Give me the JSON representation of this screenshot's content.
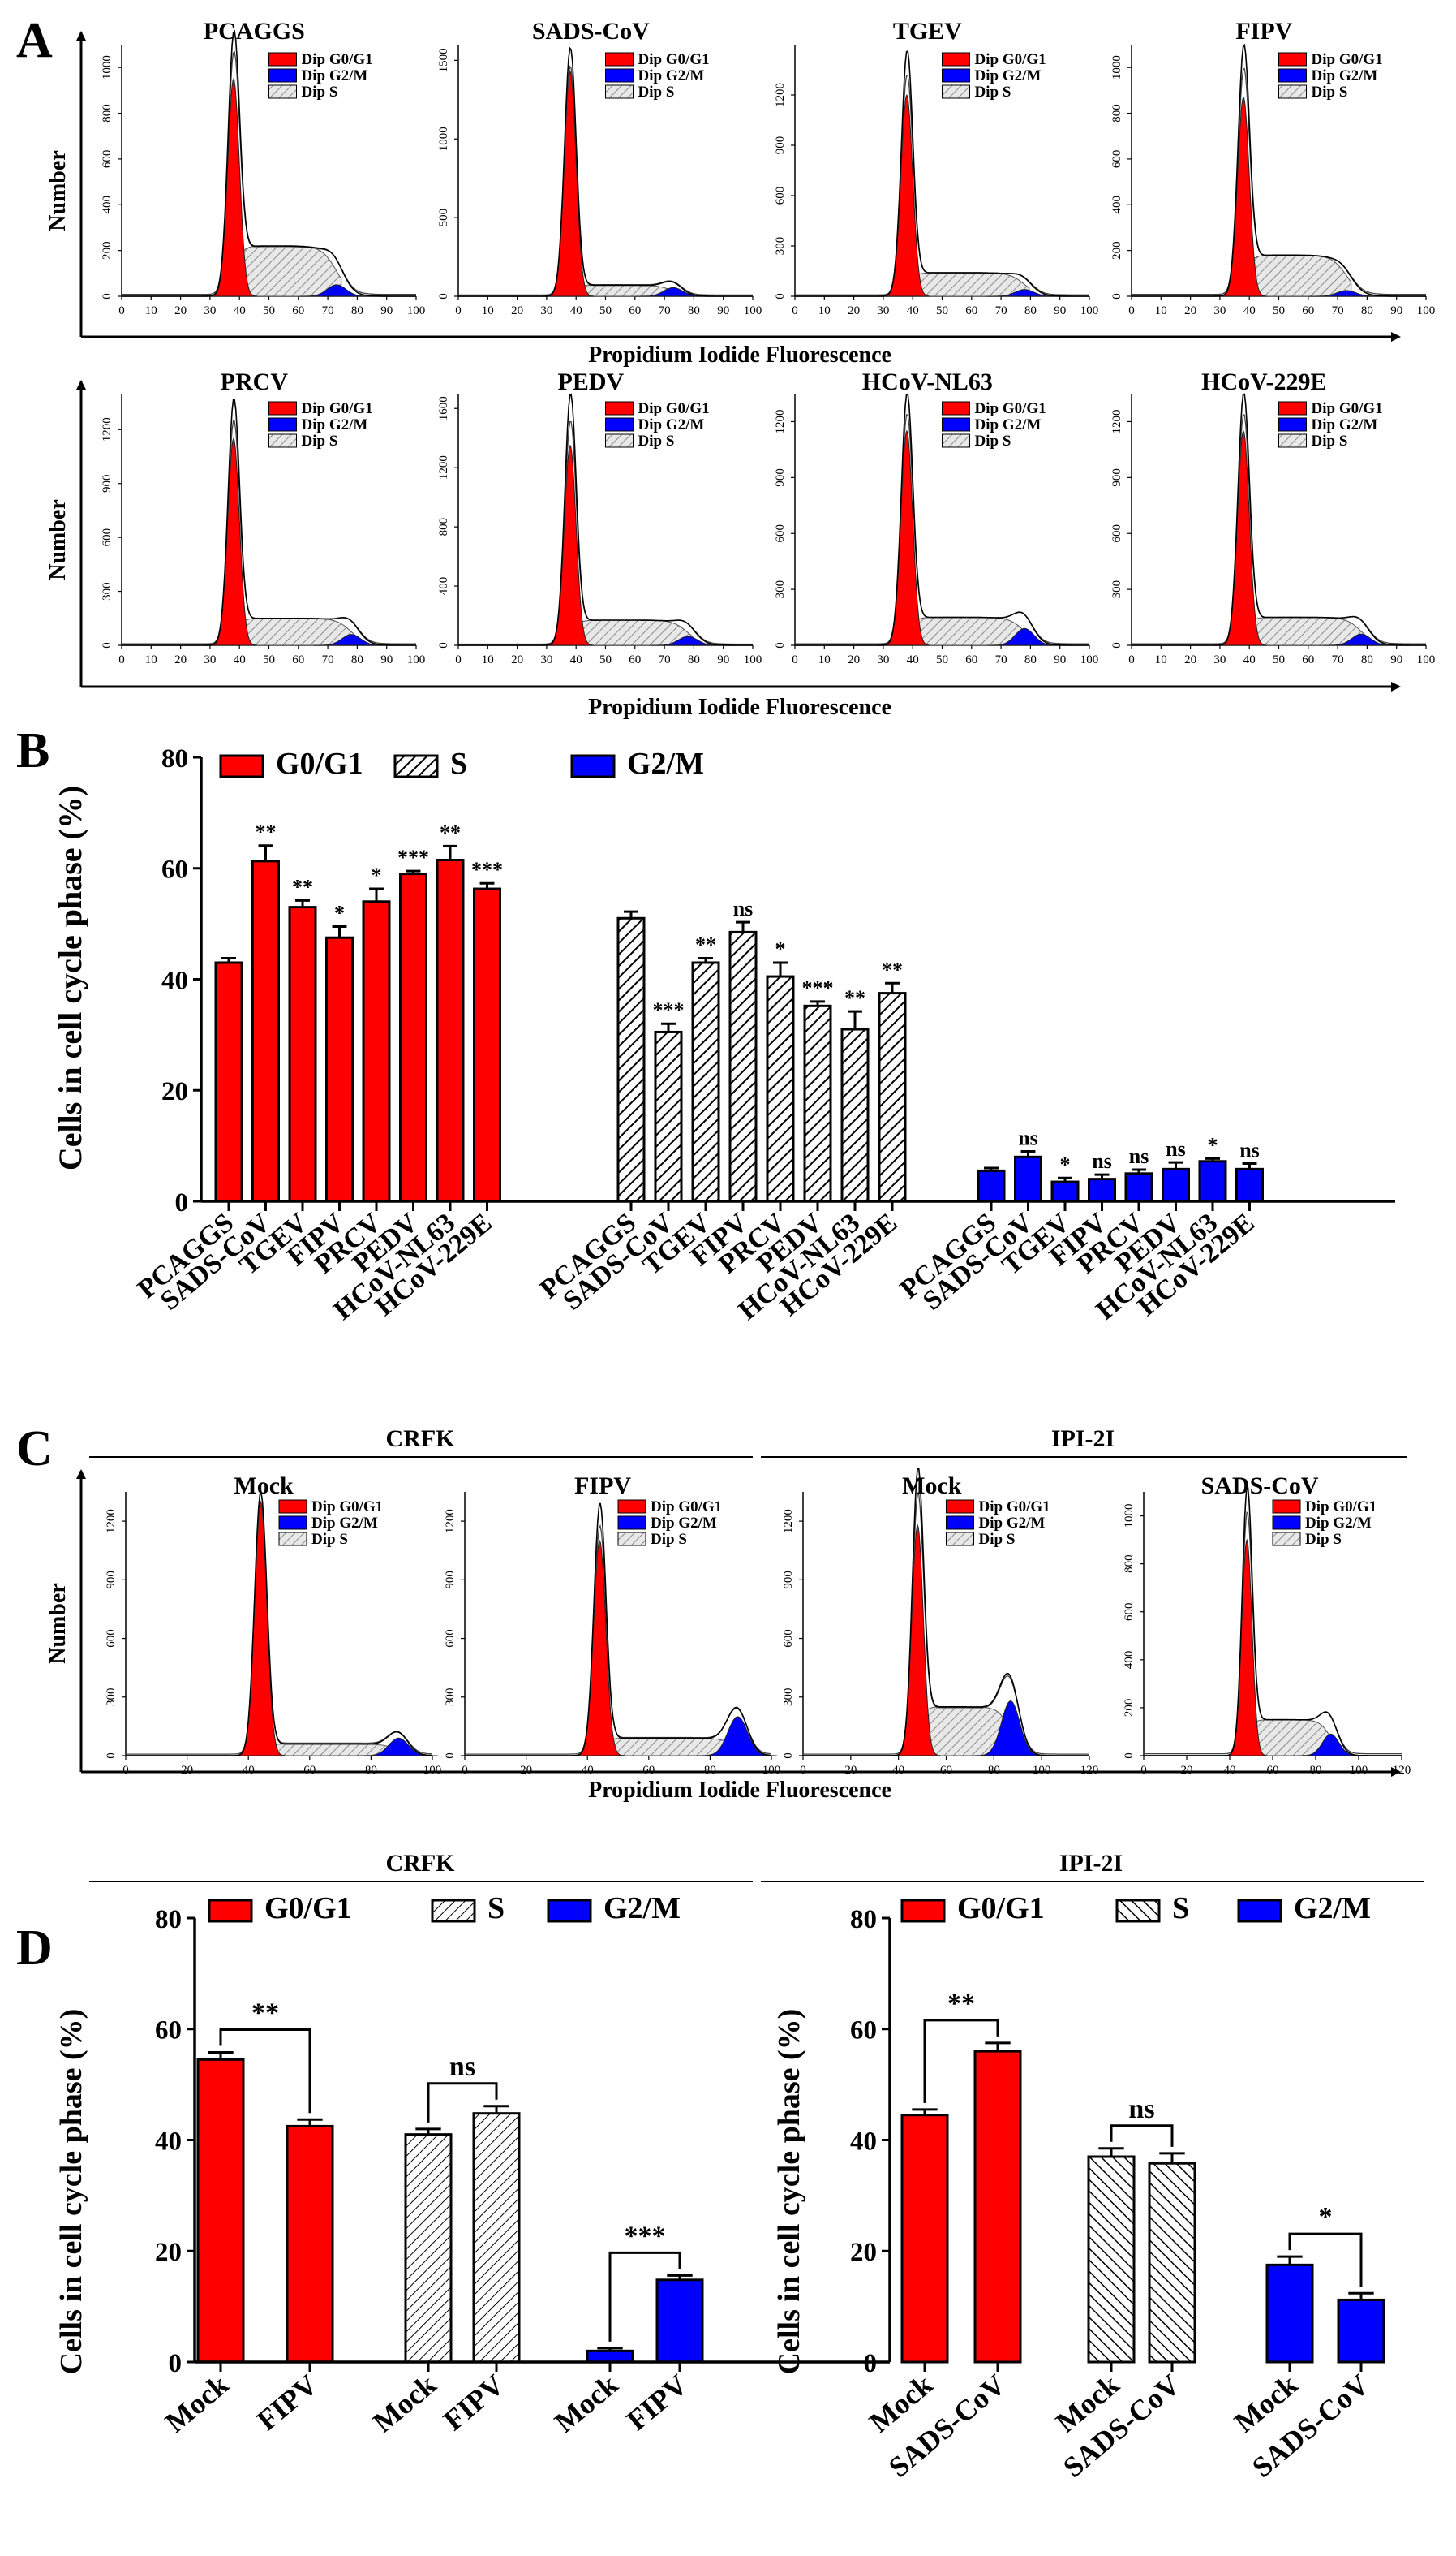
{
  "colors": {
    "g0g1": "#ff0000",
    "s": "#ffffff",
    "g2m": "#0000ff",
    "hist_s": "#bdbdbd",
    "axis": "#000000"
  },
  "panel_labels": {
    "a": "A",
    "b": "B",
    "c": "C",
    "d": "D"
  },
  "legend_hist": {
    "g0g1": "Dip G0/G1",
    "g2m": "Dip G2/M",
    "s": "Dip S"
  },
  "legend_bar": {
    "g0g1": "G0/G1",
    "s": "S",
    "g2m": "G2/M"
  },
  "axis_titles": {
    "number": "Number",
    "pi_fluorescence": "Propidium Iodide Fluorescence",
    "cells_pct": "Cells in cell cycle phase (%)"
  },
  "panel_c_groups": {
    "left": "CRFK",
    "right": "IPI-2I"
  },
  "panel_d_groups": {
    "left": "CRFK",
    "right": "IPI-2I"
  },
  "chart_data": [
    {
      "id": "panelA",
      "type": "histogram",
      "xlabel": "Propidium Iodide Fluorescence",
      "ylabel": "Number",
      "xlim": [
        0,
        100
      ],
      "xticks": [
        0,
        10,
        20,
        30,
        40,
        50,
        60,
        70,
        80,
        90,
        100
      ],
      "plots": [
        {
          "title": "PCAGGS",
          "ylim": [
            0,
            1100
          ],
          "yticks": [
            0,
            200,
            400,
            600,
            800,
            1000
          ],
          "g1_peak": 950,
          "total_peak": 1050,
          "s_level": 220,
          "g2_peak": 50,
          "g1_pos": 38,
          "g2_pos": 73
        },
        {
          "title": "SADS-CoV",
          "ylim": [
            0,
            1600
          ],
          "yticks": [
            0,
            500,
            1000,
            1500
          ],
          "g1_peak": 1430,
          "total_peak": 1550,
          "s_level": 70,
          "g2_peak": 55,
          "g1_pos": 38,
          "g2_pos": 73
        },
        {
          "title": "TGEV",
          "ylim": [
            0,
            1500
          ],
          "yticks": [
            0,
            300,
            600,
            900,
            1200
          ],
          "g1_peak": 1200,
          "total_peak": 1400,
          "s_level": 140,
          "g2_peak": 40,
          "g1_pos": 38,
          "g2_pos": 78
        },
        {
          "title": "FIPV",
          "ylim": [
            0,
            1100
          ],
          "yticks": [
            0,
            200,
            400,
            600,
            800,
            1000
          ],
          "g1_peak": 870,
          "total_peak": 1010,
          "s_level": 180,
          "g2_peak": 25,
          "g1_pos": 38,
          "g2_pos": 73
        },
        {
          "title": "PRCV",
          "ylim": [
            0,
            1400
          ],
          "yticks": [
            0,
            300,
            600,
            900,
            1200
          ],
          "g1_peak": 1150,
          "total_peak": 1300,
          "s_level": 150,
          "g2_peak": 60,
          "g1_pos": 38,
          "g2_pos": 78
        },
        {
          "title": "PEDV",
          "ylim": [
            0,
            1700
          ],
          "yticks": [
            0,
            400,
            800,
            1200,
            1600
          ],
          "g1_peak": 1350,
          "total_peak": 1620,
          "s_level": 170,
          "g2_peak": 60,
          "g1_pos": 38,
          "g2_pos": 78
        },
        {
          "title": "HCoV-NL63",
          "ylim": [
            0,
            1350
          ],
          "yticks": [
            0,
            300,
            600,
            900,
            1200
          ],
          "g1_peak": 1150,
          "total_peak": 1280,
          "s_level": 150,
          "g2_peak": 90,
          "g1_pos": 38,
          "g2_pos": 78
        },
        {
          "title": "HCoV-229E",
          "ylim": [
            0,
            1350
          ],
          "yticks": [
            0,
            300,
            600,
            900,
            1200
          ],
          "g1_peak": 1150,
          "total_peak": 1280,
          "s_level": 150,
          "g2_peak": 60,
          "g1_pos": 38,
          "g2_pos": 78
        }
      ]
    },
    {
      "id": "panelB",
      "type": "bar",
      "ylabel": "Cells in cell cycle phase (%)",
      "ylim": [
        0,
        80
      ],
      "yticks": [
        0,
        20,
        40,
        60,
        80
      ],
      "categories": [
        "PCAGGS",
        "SADS-CoV",
        "TGEV",
        "FIPV",
        "PRCV",
        "PEDV",
        "HCoV-NL63",
        "HCoV-229E"
      ],
      "series": [
        {
          "name": "G0/G1",
          "values": [
            43,
            61.3,
            53,
            47.5,
            54,
            59,
            61.5,
            56.3
          ],
          "errors": [
            0.8,
            2.8,
            1.2,
            2,
            2.3,
            0.5,
            2.5,
            1
          ],
          "sig": [
            "",
            "**",
            "**",
            "*",
            "*",
            "***",
            "**",
            "***"
          ]
        },
        {
          "name": "S",
          "values": [
            51,
            30.5,
            43,
            48.5,
            40.5,
            35.2,
            31,
            37.5
          ],
          "errors": [
            1.2,
            1.5,
            0.8,
            1.8,
            2.5,
            0.8,
            3.2,
            1.8
          ],
          "sig": [
            "",
            "***",
            "**",
            "ns",
            "*",
            "***",
            "**",
            "**"
          ]
        },
        {
          "name": "G2/M",
          "values": [
            5.5,
            8,
            3.5,
            4,
            5,
            5.8,
            7.2,
            5.8
          ],
          "errors": [
            0.5,
            1,
            0.7,
            0.8,
            0.7,
            1.2,
            0.5,
            1
          ],
          "sig": [
            "",
            "ns",
            "*",
            "ns",
            "ns",
            "ns",
            "*",
            "ns"
          ]
        }
      ]
    },
    {
      "id": "panelC",
      "type": "histogram",
      "xlabel": "Propidium Iodide Fluorescence",
      "ylabel": "Number",
      "plots": [
        {
          "title": "Mock",
          "group": "CRFK",
          "xlim": [
            0,
            100
          ],
          "xticks": [
            0,
            20,
            40,
            60,
            80,
            100
          ],
          "ylim": [
            0,
            1350
          ],
          "yticks": [
            0,
            300,
            600,
            900,
            1200
          ],
          "g1_peak": 1300,
          "total_peak": 1320,
          "s_level": 60,
          "g2_peak": 90,
          "g1_pos": 44,
          "g2_pos": 89
        },
        {
          "title": "FIPV",
          "group": "CRFK",
          "xlim": [
            0,
            100
          ],
          "xticks": [
            0,
            20,
            40,
            60,
            80,
            100
          ],
          "ylim": [
            0,
            1350
          ],
          "yticks": [
            0,
            300,
            600,
            900,
            1200
          ],
          "g1_peak": 1100,
          "total_peak": 1250,
          "s_level": 90,
          "g2_peak": 200,
          "g1_pos": 44,
          "g2_pos": 89
        },
        {
          "title": "Mock",
          "group": "IPI-2I",
          "xlim": [
            0,
            120
          ],
          "xticks": [
            0,
            20,
            40,
            60,
            80,
            100,
            120
          ],
          "ylim": [
            0,
            1350
          ],
          "yticks": [
            0,
            300,
            600,
            900,
            1200
          ],
          "g1_peak": 1180,
          "total_peak": 1350,
          "s_level": 250,
          "g2_peak": 280,
          "g1_pos": 48,
          "g2_pos": 87
        },
        {
          "title": "SADS-CoV",
          "group": "IPI-2I",
          "xlim": [
            0,
            120
          ],
          "xticks": [
            0,
            20,
            40,
            60,
            80,
            100,
            120
          ],
          "ylim": [
            0,
            1100
          ],
          "yticks": [
            0,
            200,
            400,
            600,
            800,
            1000
          ],
          "g1_peak": 900,
          "total_peak": 1050,
          "s_level": 150,
          "g2_peak": 90,
          "g1_pos": 48,
          "g2_pos": 87
        }
      ]
    },
    {
      "id": "panelD_CRFK",
      "type": "bar",
      "title": "CRFK",
      "ylabel": "Cells in cell cycle phase (%)",
      "ylim": [
        0,
        80
      ],
      "yticks": [
        0,
        20,
        40,
        60,
        80
      ],
      "categories": [
        "Mock",
        "FIPV"
      ],
      "series": [
        {
          "name": "G0/G1",
          "values": [
            54.5,
            42.5
          ],
          "errors": [
            1.3,
            1.2
          ]
        },
        {
          "name": "S",
          "values": [
            41,
            44.8
          ],
          "errors": [
            1,
            1.3
          ]
        },
        {
          "name": "G2/M",
          "values": [
            2,
            14.8
          ],
          "errors": [
            0.5,
            0.8
          ]
        }
      ],
      "comparisons": [
        "**",
        "ns",
        "***"
      ]
    },
    {
      "id": "panelD_IPI2I",
      "type": "bar",
      "title": "IPI-2I",
      "ylabel": "Cells in cell cycle phase (%)",
      "ylim": [
        0,
        80
      ],
      "yticks": [
        0,
        20,
        40,
        60,
        80
      ],
      "categories": [
        "Mock",
        "SADS-CoV"
      ],
      "series": [
        {
          "name": "G0/G1",
          "values": [
            44.5,
            56
          ],
          "errors": [
            1,
            1.5
          ]
        },
        {
          "name": "S",
          "values": [
            37,
            35.8
          ],
          "errors": [
            1.5,
            1.8
          ]
        },
        {
          "name": "G2/M",
          "values": [
            17.5,
            11.2
          ],
          "errors": [
            1.5,
            1.2
          ]
        }
      ],
      "comparisons": [
        "**",
        "ns",
        "*"
      ]
    }
  ]
}
